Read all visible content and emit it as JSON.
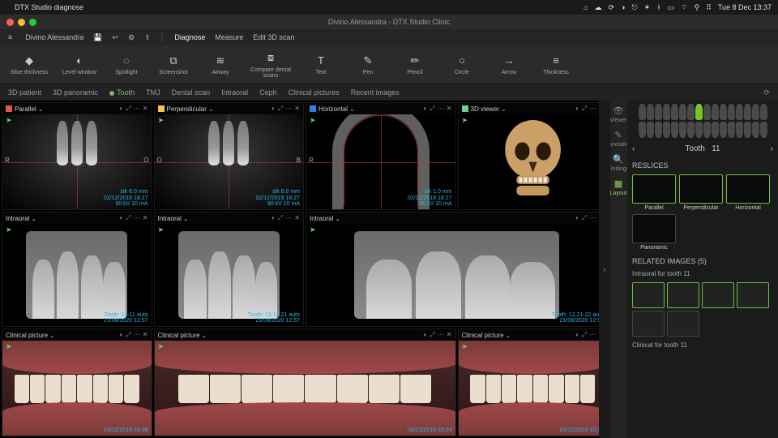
{
  "menubar": {
    "app_name": "DTX Studio diagnose",
    "clock": "Tue 8 Dec  13:37"
  },
  "window": {
    "title": "Divino Alessandra - DTX Studio Clinic",
    "traffic_colors": [
      "#ff5f56",
      "#ffbd2e",
      "#27c93f"
    ]
  },
  "topbar": {
    "patient": "Divino Alessandra",
    "actions": {
      "diagnose": "Diagnose",
      "measure": "Measure",
      "edit3d": "Edit 3D scan"
    }
  },
  "toolbar": [
    {
      "label": "Slice thickness",
      "icon": "◆"
    },
    {
      "label": "Level window",
      "icon": "◐"
    },
    {
      "label": "Spotlight",
      "icon": "◌"
    },
    {
      "label": "Screenshot",
      "icon": "⧉"
    },
    {
      "label": "Airway",
      "icon": "≋"
    },
    {
      "label": "Compare dental scans",
      "icon": "⧇"
    },
    {
      "label": "Text",
      "icon": "T"
    },
    {
      "label": "Pen",
      "icon": "✎"
    },
    {
      "label": "Pencil",
      "icon": "✏"
    },
    {
      "label": "Circle",
      "icon": "○"
    },
    {
      "label": "Arrow",
      "icon": "→"
    },
    {
      "label": "Thickness",
      "icon": "≡"
    }
  ],
  "tabs": {
    "items": [
      "3D patient",
      "3D panoramic",
      "Tooth",
      "TMJ",
      "Dental scan",
      "Intraoral",
      "Ceph",
      "Clinical pictures",
      "Recent images"
    ],
    "active_index": 2
  },
  "panels": {
    "topRow": [
      {
        "title": "Parallel",
        "sw": "#e2574c",
        "meta": {
          "thick": "stk  6.0 mm",
          "date": "02/12/2019 18:27",
          "exp": "90 kV  10 mA"
        },
        "sides": [
          "R",
          "O"
        ]
      },
      {
        "title": "Perpendicular",
        "sw": "#f2c94c",
        "meta": {
          "thick": "stk  6.0 mm",
          "date": "02/12/2019 18:27",
          "exp": "90 kV  10 mA"
        },
        "sides": [
          "O",
          "B"
        ]
      },
      {
        "title": "Horizontal",
        "sw": "#2f80ed",
        "meta": {
          "thick": "stk  1.0 mm",
          "date": "02/12/2019 18:27",
          "exp": "90 kV  10 mA"
        },
        "sides": [
          "R",
          ""
        ]
      },
      {
        "title": "3D viewer",
        "sw": "#6fcf97",
        "meta": {}
      }
    ],
    "intraoral": [
      {
        "title": "Intraoral",
        "meta": {
          "tooth": "Tooth: 14-11  auto",
          "date": "21/08/2020 12:57"
        }
      },
      {
        "title": "Intraoral",
        "meta": {
          "tooth": "Tooth: 13-12,21  auto",
          "date": "21/08/2020 12:57"
        }
      },
      {
        "title": "Intraoral",
        "meta": {
          "tooth": "Tooth: 12,21-22  auto",
          "date": "21/08/2020 12:57"
        }
      }
    ],
    "clinical": [
      {
        "title": "Clinical picture",
        "date": "23/12/2019 10:38"
      },
      {
        "title": "Clinical picture",
        "date": "03/12/2019 10:24"
      },
      {
        "title": "Clinical picture",
        "date": "03/12/2019 10:24"
      }
    ]
  },
  "rail": [
    {
      "label": "Viewer",
      "icon": "👁"
    },
    {
      "label": "Annotation",
      "icon": "✎"
    },
    {
      "label": "Findings",
      "icon": "🔍"
    },
    {
      "label": "Layout",
      "icon": "▦"
    }
  ],
  "right": {
    "tooth_label": "Tooth",
    "tooth_num": "11",
    "selected_upper_index": 7,
    "reslices_title": "RESLICES",
    "reslices": [
      {
        "label": "Parallel",
        "active": true
      },
      {
        "label": "Perpendicular",
        "active": true
      },
      {
        "label": "Horizontal",
        "active": true
      },
      {
        "label": "Panoramic",
        "active": false
      }
    ],
    "related_title": "RELATED IMAGES (5)",
    "related_sub1": "Intraoral for tooth 11",
    "related_sub2": "Clinical for tooth 11"
  },
  "colors": {
    "accent": "#74c627",
    "info_text": "#28b8e0"
  }
}
